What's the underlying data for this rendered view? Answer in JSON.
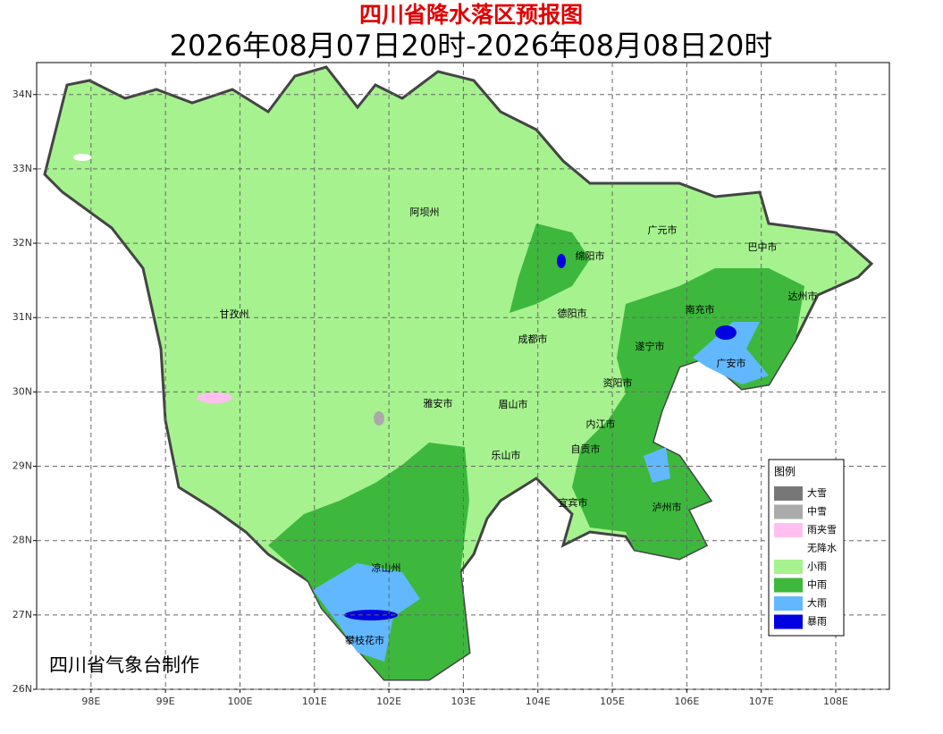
{
  "title": "四川省降水落区预报图",
  "subtitle": "2026年08月07日20时-2026年08月08日20时",
  "credit": "四川省气象台制作",
  "map": {
    "xlim": [
      97.27,
      108.72
    ],
    "ylim": [
      26,
      34.43
    ],
    "xticks": [
      {
        "value": 98,
        "label": "98E"
      },
      {
        "value": 99,
        "label": "99E"
      },
      {
        "value": 100,
        "label": "100E"
      },
      {
        "value": 101,
        "label": "101E"
      },
      {
        "value": 102,
        "label": "102E"
      },
      {
        "value": 103,
        "label": "103E"
      },
      {
        "value": 104,
        "label": "104E"
      },
      {
        "value": 105,
        "label": "105E"
      },
      {
        "value": 106,
        "label": "106E"
      },
      {
        "value": 107,
        "label": "107E"
      },
      {
        "value": 108,
        "label": "108E"
      }
    ],
    "yticks": [
      {
        "value": 26,
        "label": "26N"
      },
      {
        "value": 27,
        "label": "27N"
      },
      {
        "value": 28,
        "label": "28N"
      },
      {
        "value": 29,
        "label": "29N"
      },
      {
        "value": 30,
        "label": "30N"
      },
      {
        "value": 31,
        "label": "31N"
      },
      {
        "value": 32,
        "label": "32N"
      },
      {
        "value": 33,
        "label": "33N"
      },
      {
        "value": 34,
        "label": "34N"
      }
    ]
  },
  "cities": [
    "阿坝州",
    "甘孜州",
    "广元市",
    "巴中市",
    "绵阳市",
    "德阳市",
    "南充市",
    "达州市",
    "成都市",
    "遂宁市",
    "广安市",
    "资阳市",
    "雅安市",
    "眉山市",
    "内江市",
    "自贡市",
    "乐山市",
    "宜宾市",
    "泸州市",
    "凉山州",
    "攀枝花市"
  ],
  "legend": {
    "title": "图例",
    "items": [
      {
        "label": "大雪",
        "color": "#777777"
      },
      {
        "label": "中雪",
        "color": "#aaaaaa"
      },
      {
        "label": "雨夹雪",
        "color": "#ffc0f0"
      },
      {
        "label": "无降水",
        "color": "#ffffff"
      },
      {
        "label": "小雨",
        "color": "#a6f28f"
      },
      {
        "label": "中雨",
        "color": "#3db83d"
      },
      {
        "label": "大雨",
        "color": "#61b8ff"
      },
      {
        "label": "暴雨",
        "color": "#0000e0"
      }
    ]
  }
}
